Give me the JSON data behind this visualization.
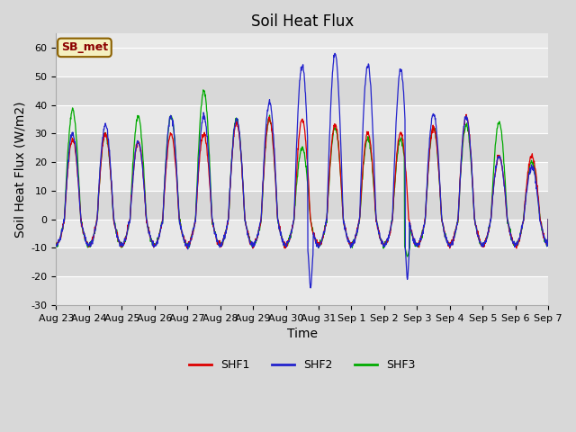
{
  "title": "Soil Heat Flux",
  "xlabel": "Time",
  "ylabel": "Soil Heat Flux (W/m2)",
  "ylim": [
    -30,
    65
  ],
  "yticks": [
    -30,
    -20,
    -10,
    0,
    10,
    20,
    30,
    40,
    50,
    60
  ],
  "legend_label": "SB_met",
  "series_labels": [
    "SHF1",
    "SHF2",
    "SHF3"
  ],
  "series_colors": [
    "#dd0000",
    "#2222cc",
    "#00aa00"
  ],
  "fig_facecolor": "#d8d8d8",
  "axes_facecolor": "#e8e8e8",
  "title_fontsize": 12,
  "axis_label_fontsize": 10,
  "tick_label_fontsize": 8,
  "num_days": 15,
  "x_tick_labels": [
    "Aug 23",
    "Aug 24",
    "Aug 25",
    "Aug 26",
    "Aug 27",
    "Aug 28",
    "Aug 29",
    "Aug 30",
    "Aug 31",
    "Sep 1",
    "Sep 2",
    "Sep 3",
    "Sep 4",
    "Sep 5",
    "Sep 6",
    "Sep 7"
  ],
  "day_peaks_shf1": [
    28,
    30,
    27,
    30,
    30,
    34,
    35,
    35,
    33,
    30,
    30,
    32,
    36,
    22,
    22
  ],
  "day_peaks_shf2": [
    30,
    33,
    27,
    36,
    36,
    35,
    41,
    54,
    58,
    54,
    52,
    37,
    36,
    22,
    18
  ],
  "day_peaks_shf3": [
    38,
    30,
    36,
    36,
    45,
    35,
    35,
    25,
    32,
    28,
    28,
    32,
    33,
    34,
    20
  ]
}
